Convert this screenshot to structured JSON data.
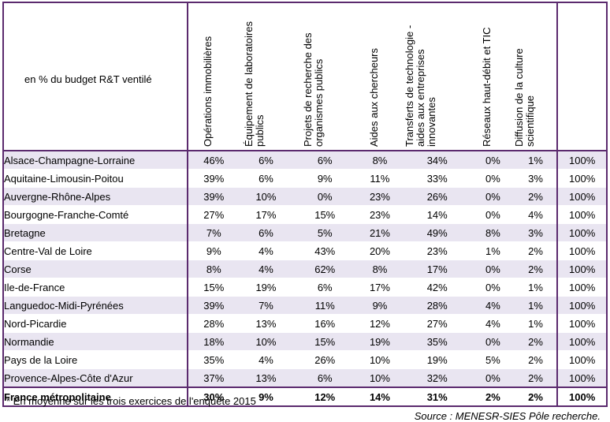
{
  "table": {
    "corner_label": "en % du budget R&T ventilé",
    "columns": [
      "Opérations immobilières",
      "Équipement de laboratoires publics",
      "Projets de recherche des organismes publics",
      "Aides aux chercheurs",
      "Transferts de technologie - aides aux entreprises innovantes",
      "Réseaux haut-débit et TIC",
      "Diffusion de la culture scientifique",
      ""
    ],
    "rows": [
      {
        "region": "Alsace-Champagne-Lorraine",
        "values": [
          "46%",
          "6%",
          "6%",
          "8%",
          "34%",
          "0%",
          "1%"
        ],
        "total": "100%"
      },
      {
        "region": "Aquitaine-Limousin-Poitou",
        "values": [
          "39%",
          "6%",
          "9%",
          "11%",
          "33%",
          "0%",
          "3%"
        ],
        "total": "100%"
      },
      {
        "region": "Auvergne-Rhône-Alpes",
        "values": [
          "39%",
          "10%",
          "0%",
          "23%",
          "26%",
          "0%",
          "2%"
        ],
        "total": "100%"
      },
      {
        "region": "Bourgogne-Franche-Comté",
        "values": [
          "27%",
          "17%",
          "15%",
          "23%",
          "14%",
          "0%",
          "4%"
        ],
        "total": "100%"
      },
      {
        "region": "Bretagne",
        "values": [
          "7%",
          "6%",
          "5%",
          "21%",
          "49%",
          "8%",
          "3%"
        ],
        "total": "100%"
      },
      {
        "region": "Centre-Val de Loire",
        "values": [
          "9%",
          "4%",
          "43%",
          "20%",
          "23%",
          "1%",
          "2%"
        ],
        "total": "100%"
      },
      {
        "region": "Corse",
        "values": [
          "8%",
          "4%",
          "62%",
          "8%",
          "17%",
          "0%",
          "2%"
        ],
        "total": "100%"
      },
      {
        "region": "Ile-de-France",
        "values": [
          "15%",
          "19%",
          "6%",
          "17%",
          "42%",
          "0%",
          "1%"
        ],
        "total": "100%"
      },
      {
        "region": "Languedoc-Midi-Pyrénées",
        "values": [
          "39%",
          "7%",
          "11%",
          "9%",
          "28%",
          "4%",
          "1%"
        ],
        "total": "100%"
      },
      {
        "region": "Nord-Picardie",
        "values": [
          "28%",
          "13%",
          "16%",
          "12%",
          "27%",
          "4%",
          "1%"
        ],
        "total": "100%"
      },
      {
        "region": "Normandie",
        "values": [
          "18%",
          "10%",
          "15%",
          "19%",
          "35%",
          "0%",
          "2%"
        ],
        "total": "100%"
      },
      {
        "region": "Pays de la Loire",
        "values": [
          "35%",
          "4%",
          "26%",
          "10%",
          "19%",
          "5%",
          "2%"
        ],
        "total": "100%"
      },
      {
        "region": "Provence-Alpes-Côte d'Azur",
        "values": [
          "37%",
          "13%",
          "6%",
          "10%",
          "32%",
          "0%",
          "2%"
        ],
        "total": "100%"
      }
    ],
    "footer": {
      "region": "France métropolitaine",
      "values": [
        "30%",
        "9%",
        "12%",
        "14%",
        "31%",
        "2%",
        "2%"
      ],
      "total": "100%"
    },
    "band_color": "#e9e5f1",
    "border_color": "#5b2a6e"
  },
  "note": "* En moyenne sur les trois exercices de l'enquête 2015",
  "source": "Source : MENESR-SIES Pôle recherche."
}
